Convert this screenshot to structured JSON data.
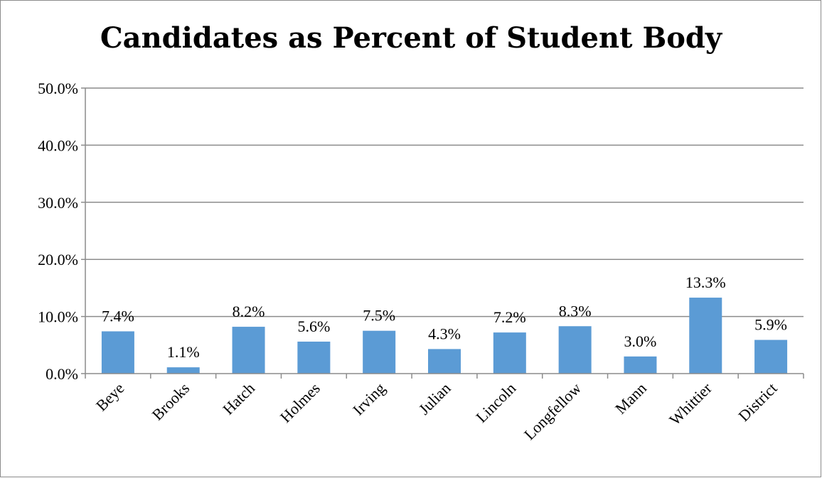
{
  "chart_data": {
    "type": "bar",
    "title": "Candidates as Percent of Student Body",
    "xlabel": "",
    "ylabel": "",
    "categories": [
      "Beye",
      "Brooks",
      "Hatch",
      "Holmes",
      "Irving",
      "Julian",
      "Lincoln",
      "Longfellow",
      "Mann",
      "Whittier",
      "District"
    ],
    "values": [
      7.4,
      1.1,
      8.2,
      5.6,
      7.5,
      4.3,
      7.2,
      8.3,
      3.0,
      13.3,
      5.9
    ],
    "data_labels": [
      "7.4%",
      "1.1%",
      "8.2%",
      "5.6%",
      "7.5%",
      "4.3%",
      "7.2%",
      "8.3%",
      "3.0%",
      "13.3%",
      "5.9%"
    ],
    "ylim": [
      0,
      50
    ],
    "yticks": [
      0,
      10,
      20,
      30,
      40,
      50
    ],
    "ytick_labels": [
      "0.0%",
      "10.0%",
      "20.0%",
      "30.0%",
      "40.0%",
      "50.0%"
    ],
    "grid": true,
    "legend": "none",
    "bar_color": "#5b9bd5",
    "gridline_color": "#8c8c8c"
  }
}
